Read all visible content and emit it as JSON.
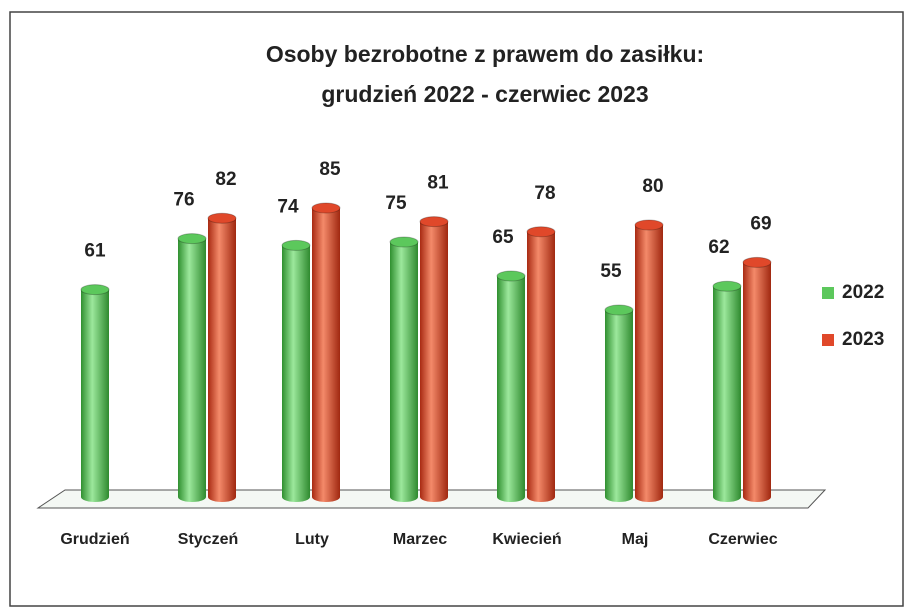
{
  "chart_data": {
    "type": "bar3d",
    "title": [
      "Osoby bezrobotne z prawem do zasiłku:",
      "grudzień 2022 - czerwiec 2023"
    ],
    "categories": [
      "Grudzień",
      "Styczeń",
      "Luty",
      "Marzec",
      "Kwiecień",
      "Maj",
      "Czerwiec"
    ],
    "series": [
      {
        "name": "2022",
        "color": "#5cc85c",
        "values": [
          61,
          76,
          74,
          75,
          65,
          55,
          62
        ]
      },
      {
        "name": "2023",
        "color": "#e0482a",
        "values": [
          null,
          82,
          85,
          81,
          78,
          80,
          69
        ]
      }
    ],
    "legend": "right"
  }
}
